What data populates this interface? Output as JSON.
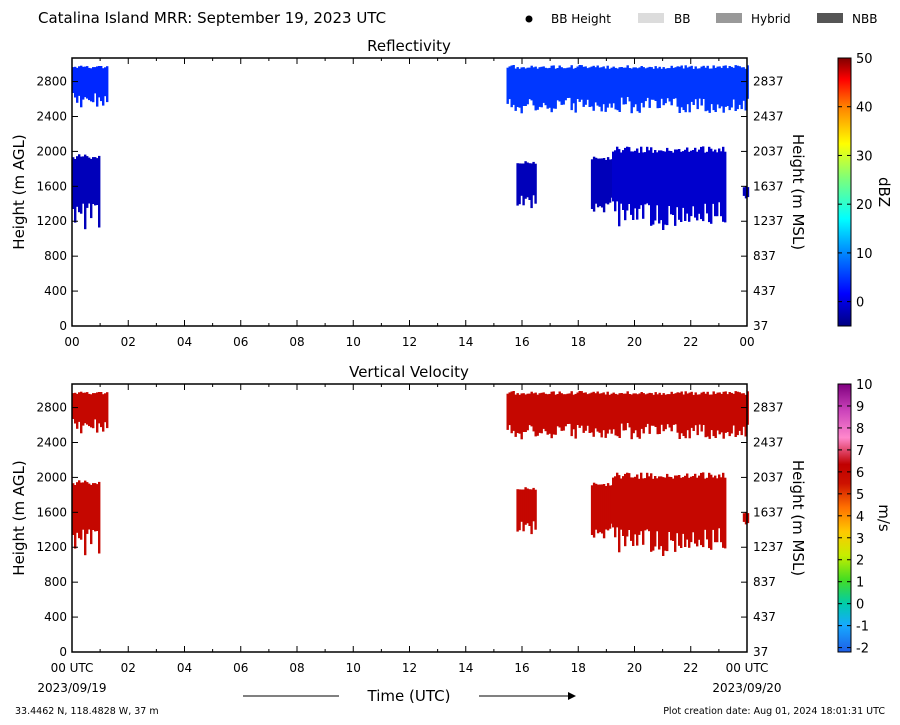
{
  "header": {
    "title": "Catalina Island MRR:  September 19, 2023 UTC",
    "legend": [
      {
        "label": "BB Height",
        "kind": "dot",
        "color": "#000000"
      },
      {
        "label": "BB",
        "kind": "swatch",
        "color": "#dcdcdc"
      },
      {
        "label": "Hybrid",
        "kind": "swatch",
        "color": "#999999"
      },
      {
        "label": "NBB",
        "kind": "swatch",
        "color": "#555555"
      }
    ]
  },
  "footer": {
    "location": "33.4462 N, 118.4828 W, 37 m",
    "creation": "Plot creation date: Aug 01, 2024 18:01:31 UTC",
    "time_label": "Time (UTC)",
    "start_date": "2023/09/19",
    "end_date": "2023/09/20"
  },
  "chart_data": [
    {
      "type": "heatmap",
      "title": "Reflectivity",
      "ylabel": "Height (m AGL)",
      "ylabel_right": "Height (m MSL)",
      "x_ticks": [
        "00",
        "02",
        "04",
        "06",
        "08",
        "10",
        "12",
        "14",
        "16",
        "18",
        "20",
        "22",
        "00"
      ],
      "xlim": [
        0,
        24
      ],
      "ylim": [
        0,
        3070
      ],
      "y_ticks": [
        0,
        400,
        800,
        1200,
        1600,
        2000,
        2400,
        2800
      ],
      "y_ticks_right": [
        "37",
        "437",
        "837",
        "1237",
        "1637",
        "2037",
        "2437",
        "2837"
      ],
      "colorbar": {
        "label": "dBZ",
        "min": -5,
        "max": 50,
        "ticks": [
          "0",
          "10",
          "20",
          "30",
          "40",
          "50"
        ]
      },
      "echo_regions": [
        {
          "x": [
            0.0,
            1.25
          ],
          "y": [
            2500,
            2990
          ],
          "value": 4
        },
        {
          "x": [
            0.0,
            0.95
          ],
          "y": [
            1100,
            1980
          ],
          "value": -2
        },
        {
          "x": [
            15.45,
            24.0
          ],
          "y": [
            2430,
            2990
          ],
          "value": 5
        },
        {
          "x": [
            15.8,
            16.5
          ],
          "y": [
            1300,
            1900
          ],
          "value": -2
        },
        {
          "x": [
            18.45,
            19.2
          ],
          "y": [
            1300,
            1950
          ],
          "value": -2
        },
        {
          "x": [
            19.2,
            23.2
          ],
          "y": [
            1100,
            2060
          ],
          "value": -1
        },
        {
          "x": [
            23.85,
            24.0
          ],
          "y": [
            1450,
            1600
          ],
          "value": -2
        }
      ]
    },
    {
      "type": "heatmap",
      "title": "Vertical Velocity",
      "ylabel": "Height (m AGL)",
      "ylabel_right": "Height (m MSL)",
      "x_ticks": [
        "00 UTC",
        "02",
        "04",
        "06",
        "08",
        "10",
        "12",
        "14",
        "16",
        "18",
        "20",
        "22",
        "00 UTC"
      ],
      "xlim": [
        0,
        24
      ],
      "ylim": [
        0,
        3070
      ],
      "y_ticks": [
        0,
        400,
        800,
        1200,
        1600,
        2000,
        2400,
        2800
      ],
      "y_ticks_right": [
        "37",
        "437",
        "837",
        "1237",
        "1637",
        "2037",
        "2437",
        "2837"
      ],
      "colorbar": {
        "label": "m/s",
        "min": -2.2,
        "max": 10,
        "ticks": [
          "-2",
          "-1",
          "0",
          "1",
          "2",
          "3",
          "4",
          "5",
          "6",
          "7",
          "8",
          "9",
          "10"
        ]
      },
      "echo_regions": [
        {
          "x": [
            0.0,
            1.25
          ],
          "y": [
            2500,
            2990
          ],
          "value": 6
        },
        {
          "x": [
            0.0,
            0.95
          ],
          "y": [
            1100,
            1980
          ],
          "value": 6
        },
        {
          "x": [
            15.45,
            24.0
          ],
          "y": [
            2430,
            2990
          ],
          "value": 6
        },
        {
          "x": [
            15.8,
            16.5
          ],
          "y": [
            1300,
            1900
          ],
          "value": 6
        },
        {
          "x": [
            18.45,
            19.2
          ],
          "y": [
            1300,
            1950
          ],
          "value": 6
        },
        {
          "x": [
            19.2,
            23.2
          ],
          "y": [
            1100,
            2060
          ],
          "value": 6
        },
        {
          "x": [
            23.85,
            24.0
          ],
          "y": [
            1450,
            1600
          ],
          "value": 6
        }
      ]
    }
  ]
}
